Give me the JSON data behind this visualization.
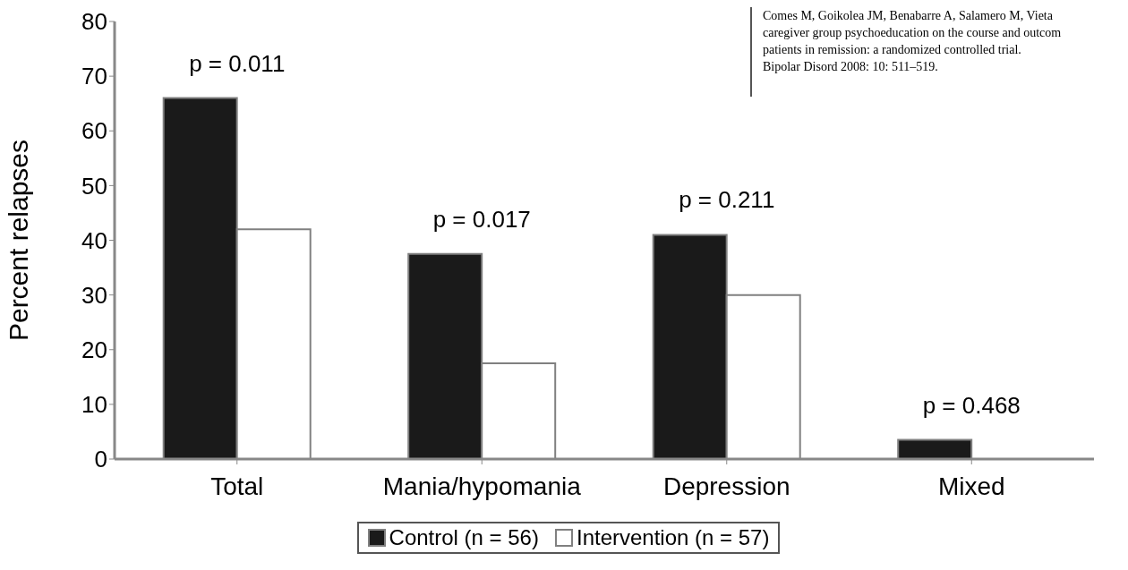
{
  "chart_data": {
    "type": "bar",
    "categories": [
      "Total",
      "Mania/hypomania",
      "Depression",
      "Mixed"
    ],
    "series": [
      {
        "name": "Control (n = 56)",
        "color": "#1a1a1a",
        "values": [
          66,
          37.5,
          41,
          3.5
        ]
      },
      {
        "name": "Intervention (n = 57)",
        "color": "#ffffff",
        "values": [
          42,
          17.5,
          30,
          0
        ]
      }
    ],
    "ylabel": "Percent relapses",
    "ylim": [
      0,
      80
    ],
    "yticks": [
      0,
      10,
      20,
      30,
      40,
      50,
      60,
      70,
      80
    ],
    "grid": false,
    "legend": "bottom",
    "annotations": [
      "p = 0.011",
      "p = 0.017",
      "p = 0.211",
      "p = 0.468",
      "Comes M, Goikolea JM, Benabarre A, Salamero M, Vieta",
      "caregiver group psychoeducation on the course and outcom",
      "patients in remission: a randomized controlled trial.",
      "Bipolar Disord 2008: 10: 511–519."
    ]
  }
}
